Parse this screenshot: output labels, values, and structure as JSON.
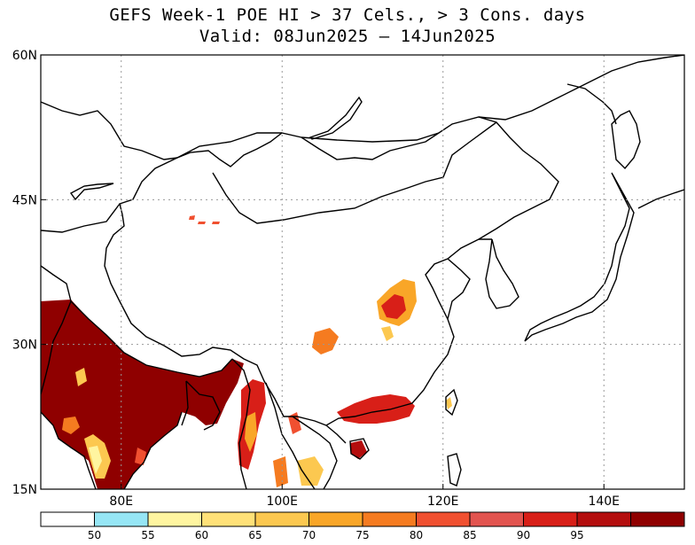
{
  "title": {
    "line1": "GEFS Week-1 POE HI > 37 Cels., > 3 Cons. days",
    "line2": "Valid: 08Jun2025 – 14Jun2025"
  },
  "map": {
    "lon_range": [
      70,
      150
    ],
    "lat_range": [
      15,
      60
    ],
    "lat_ticks": [
      {
        "value": 60,
        "label": "60N"
      },
      {
        "value": 45,
        "label": "45N"
      },
      {
        "value": 30,
        "label": "30N"
      },
      {
        "value": 15,
        "label": "15N"
      }
    ],
    "lon_ticks": [
      {
        "value": 80,
        "label": "80E"
      },
      {
        "value": 100,
        "label": "100E"
      },
      {
        "value": 120,
        "label": "120E"
      },
      {
        "value": 140,
        "label": "140E"
      }
    ],
    "grid": true,
    "grid_style": "dotted"
  },
  "colorbar": {
    "colors": [
      "#ffffff",
      "#96e6f5",
      "#fff5a0",
      "#ffe178",
      "#fcc850",
      "#f9a628",
      "#f57b20",
      "#f05030",
      "#e2544f",
      "#d81f18",
      "#b40e0e",
      "#8f0000"
    ],
    "labels": [
      "50",
      "55",
      "60",
      "65",
      "70",
      "75",
      "80",
      "85",
      "90",
      "95"
    ]
  }
}
